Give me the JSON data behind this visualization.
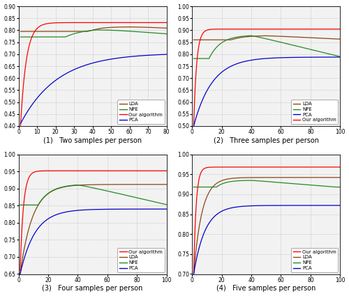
{
  "subplots": [
    {
      "title": "(1)   Two samples per person",
      "xlim": [
        0,
        80
      ],
      "ylim": [
        0.4,
        0.9
      ],
      "yticks": [
        0.4,
        0.45,
        0.5,
        0.55,
        0.6,
        0.65,
        0.7,
        0.75,
        0.8,
        0.85,
        0.9
      ],
      "xticks": [
        0,
        10,
        20,
        30,
        40,
        50,
        60,
        70,
        80
      ],
      "legend_order": [
        "LDA",
        "NPE",
        "Our algorithm",
        "PCA"
      ],
      "legend_loc": "lower right"
    },
    {
      "title": "(2)   Three samples per person",
      "xlim": [
        0,
        100
      ],
      "ylim": [
        0.5,
        1.0
      ],
      "yticks": [
        0.5,
        0.55,
        0.6,
        0.65,
        0.7,
        0.75,
        0.8,
        0.85,
        0.9,
        0.95,
        1.0
      ],
      "xticks": [
        0,
        20,
        40,
        60,
        80,
        100
      ],
      "legend_order": [
        "LDA",
        "NPE",
        "PCA",
        "Our algorithm"
      ],
      "legend_loc": "lower right"
    },
    {
      "title": "(3)   Four samples per person",
      "xlim": [
        0,
        100
      ],
      "ylim": [
        0.65,
        1.0
      ],
      "yticks": [
        0.65,
        0.7,
        0.75,
        0.8,
        0.85,
        0.9,
        0.95,
        1.0
      ],
      "xticks": [
        0,
        20,
        40,
        60,
        80,
        100
      ],
      "legend_order": [
        "Our algorithm",
        "LDA",
        "NPE",
        "PCA"
      ],
      "legend_loc": "lower right"
    },
    {
      "title": "(4)   Five samples per person",
      "xlim": [
        0,
        100
      ],
      "ylim": [
        0.7,
        1.0
      ],
      "yticks": [
        0.7,
        0.75,
        0.8,
        0.85,
        0.9,
        0.95,
        1.0
      ],
      "xticks": [
        0,
        20,
        40,
        60,
        80,
        100
      ],
      "legend_order": [
        "Our algorithm",
        "LDA",
        "NPE",
        "PCA"
      ],
      "legend_loc": "lower right"
    }
  ],
  "colors": {
    "LDA": "#8B4513",
    "NPE": "#228B22",
    "Our algorithm": "#FF0000",
    "PCA": "#0000CD"
  },
  "background": "#f2f2f2"
}
